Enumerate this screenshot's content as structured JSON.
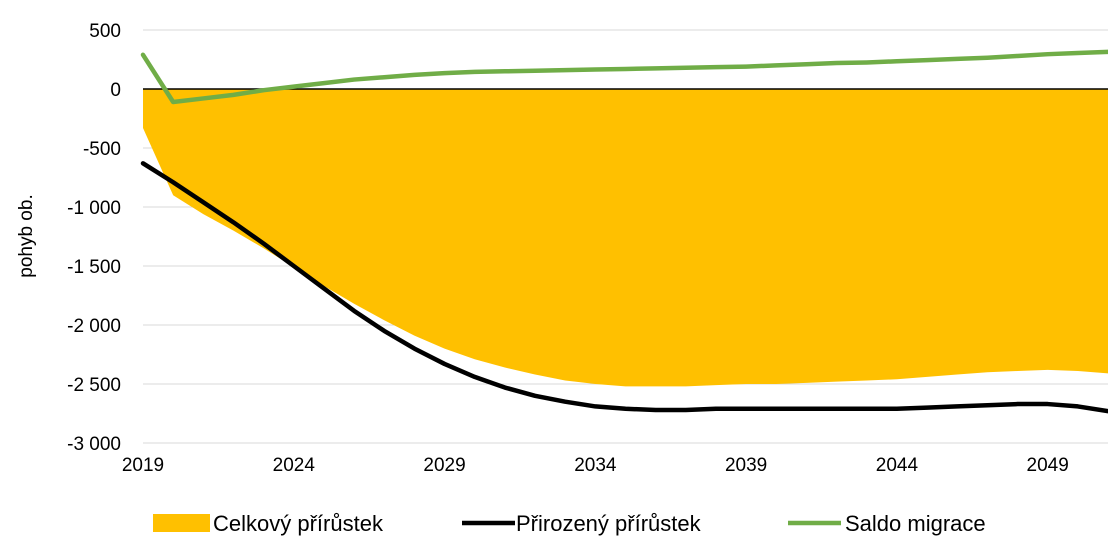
{
  "chart_data": {
    "type": "area",
    "ylabel": "pohyb ob.",
    "xlabel": "",
    "x": [
      2019,
      2020,
      2021,
      2022,
      2023,
      2024,
      2025,
      2026,
      2027,
      2028,
      2029,
      2030,
      2031,
      2032,
      2033,
      2034,
      2035,
      2036,
      2037,
      2038,
      2039,
      2040,
      2041,
      2042,
      2043,
      2044,
      2045,
      2046,
      2047,
      2048,
      2049,
      2050,
      2051
    ],
    "xticks": [
      2019,
      2024,
      2029,
      2034,
      2039,
      2044,
      2049
    ],
    "xtick_labels": [
      "2019",
      "2024",
      "2029",
      "2034",
      "2039",
      "2044",
      "2049"
    ],
    "yticks": [
      500,
      0,
      -500,
      -1000,
      -1500,
      -2000,
      -2500,
      -3000
    ],
    "ytick_labels": [
      "500",
      "0",
      "-500",
      "-1 000",
      "-1 500",
      "-2 000",
      "-2 500",
      "-3 000"
    ],
    "xlim": [
      2019,
      2051
    ],
    "ylim": [
      -3000,
      500
    ],
    "series": [
      {
        "name": "Celkový přírůstek",
        "kind": "area",
        "color": "#FFC000",
        "values": [
          -330,
          -900,
          -1060,
          -1200,
          -1350,
          -1510,
          -1670,
          -1820,
          -1960,
          -2090,
          -2200,
          -2290,
          -2360,
          -2420,
          -2470,
          -2500,
          -2520,
          -2520,
          -2520,
          -2510,
          -2500,
          -2500,
          -2490,
          -2480,
          -2470,
          -2460,
          -2440,
          -2420,
          -2400,
          -2390,
          -2380,
          -2390,
          -2410
        ]
      },
      {
        "name": "Přirozený přírůstek",
        "kind": "line",
        "color": "#000000",
        "values": [
          -630,
          -790,
          -960,
          -1130,
          -1310,
          -1500,
          -1690,
          -1880,
          -2050,
          -2200,
          -2330,
          -2440,
          -2530,
          -2600,
          -2650,
          -2690,
          -2710,
          -2720,
          -2720,
          -2710,
          -2710,
          -2710,
          -2710,
          -2710,
          -2710,
          -2710,
          -2700,
          -2690,
          -2680,
          -2670,
          -2670,
          -2690,
          -2730
        ]
      },
      {
        "name": "Saldo migrace",
        "kind": "line",
        "color": "#70AD47",
        "values": [
          290,
          -110,
          -80,
          -50,
          -10,
          20,
          50,
          80,
          100,
          120,
          135,
          145,
          150,
          155,
          160,
          165,
          170,
          175,
          180,
          185,
          190,
          200,
          210,
          220,
          225,
          235,
          245,
          255,
          265,
          280,
          295,
          305,
          315
        ]
      }
    ],
    "grid": "horizontal",
    "legend_position": "bottom"
  }
}
